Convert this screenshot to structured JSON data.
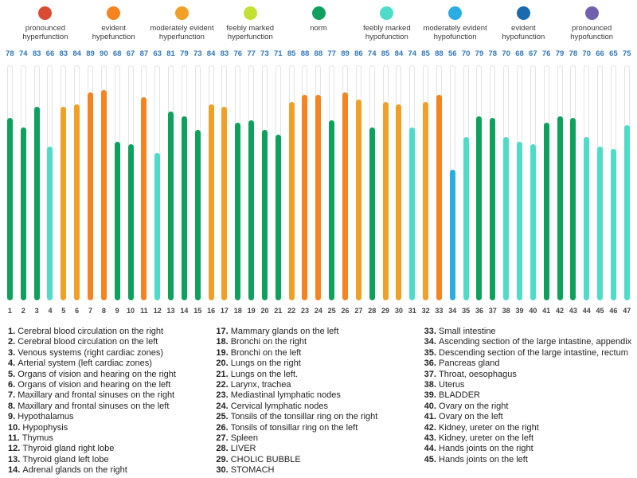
{
  "legend": {
    "items": [
      {
        "name": "pronounced-hyperfunction",
        "label": "pronounced hyperfunction",
        "color": "#d94c33"
      },
      {
        "name": "evident-hyperfunction",
        "label": "evident hypefunction",
        "color": "#f5831f"
      },
      {
        "name": "moderately-evident-hyperfunction",
        "label": "moderately evident hyperfunction",
        "color": "#f0a026"
      },
      {
        "name": "feebly-marked-hyperfunction",
        "label": "feebly marked hyperfunction",
        "color": "#c3e135"
      },
      {
        "name": "norm",
        "label": "norm",
        "color": "#0da15d"
      },
      {
        "name": "feebly-marked-hypofunction",
        "label": "feebly marked hypofunction",
        "color": "#4edcc8"
      },
      {
        "name": "moderately-evident-hypofunction",
        "label": "moderately evident hypofunction",
        "color": "#29ade3"
      },
      {
        "name": "evident-hypofunction",
        "label": "evident hypofunction",
        "color": "#1a6ab1"
      },
      {
        "name": "pronounced-hypofunction",
        "label": "pronounced hypofunction",
        "color": "#7061ae"
      }
    ]
  },
  "chart_data": {
    "type": "bar",
    "title": "",
    "xlabel": "",
    "ylabel": "",
    "ylim": [
      0,
      100
    ],
    "grid": false,
    "value_label_color": "#3277b8",
    "categories": [
      1,
      2,
      3,
      4,
      5,
      6,
      7,
      8,
      9,
      10,
      11,
      12,
      13,
      14,
      15,
      16,
      17,
      18,
      19,
      20,
      21,
      22,
      23,
      24,
      25,
      26,
      27,
      28,
      29,
      30,
      31,
      32,
      33,
      34,
      35,
      36,
      37,
      38,
      39,
      40,
      41,
      42,
      43,
      44,
      45,
      46,
      47
    ],
    "values": [
      78,
      74,
      83,
      66,
      83,
      84,
      89,
      90,
      68,
      67,
      87,
      63,
      81,
      79,
      73,
      84,
      83,
      76,
      77,
      73,
      71,
      85,
      88,
      88,
      77,
      89,
      86,
      74,
      85,
      84,
      74,
      85,
      88,
      56,
      70,
      79,
      78,
      70,
      68,
      67,
      76,
      79,
      78,
      70,
      66,
      65,
      75
    ],
    "statuses": [
      "norm",
      "norm",
      "norm",
      "feebly_hypo",
      "mod_hyper",
      "mod_hyper",
      "evident_hyper",
      "evident_hyper",
      "norm",
      "norm",
      "evident_hyper",
      "feebly_hypo",
      "norm",
      "norm",
      "norm",
      "mod_hyper",
      "mod_hyper",
      "norm",
      "norm",
      "norm",
      "norm",
      "mod_hyper",
      "evident_hyper",
      "evident_hyper",
      "norm",
      "evident_hyper",
      "mod_hyper",
      "norm",
      "mod_hyper",
      "mod_hyper",
      "feebly_hypo",
      "mod_hyper",
      "evident_hyper",
      "mod_hypo",
      "feebly_hypo",
      "norm",
      "norm",
      "feebly_hypo",
      "feebly_hypo",
      "feebly_hypo",
      "norm",
      "norm",
      "norm",
      "feebly_hypo",
      "feebly_hypo",
      "feebly_hypo",
      "feebly_hypo"
    ],
    "status_colors": {
      "norm": "#0da15d",
      "mod_hyper": "#f0a026",
      "evident_hyper": "#f5831f",
      "feebly_hypo": "#4edcc8",
      "mod_hypo": "#29ade3"
    }
  },
  "organ_list": {
    "columns": [
      {
        "items": [
          {
            "num": "1.",
            "name": "Cerebral blood circulation on the right"
          },
          {
            "num": "2.",
            "name": "Cerebral blood circulation on the left"
          },
          {
            "num": "3.",
            "name": "Venous systems (right cardiac zones)"
          },
          {
            "num": "4.",
            "name": "Arterial system (left cardiac zones)"
          },
          {
            "num": "5.",
            "name": "Organs of vision and hearing on the right"
          },
          {
            "num": "6.",
            "name": "Organs of vision and hearing on the left"
          },
          {
            "num": "7.",
            "name": "Maxillary and frontal sinuses on the right"
          },
          {
            "num": "8.",
            "name": "Maxillary and frontal sinuses on the left"
          },
          {
            "num": "9.",
            "name": "Hypothalamus"
          },
          {
            "num": "10.",
            "name": "Hypophysis"
          },
          {
            "num": "11.",
            "name": "Thymus"
          },
          {
            "num": "12.",
            "name": "Thyroid gland right lobe"
          },
          {
            "num": "13.",
            "name": "Thyroid gland left lobe"
          },
          {
            "num": "14.",
            "name": "Adrenal glands on the right"
          }
        ]
      },
      {
        "items": [
          {
            "num": "17.",
            "name": "Mammary glands on the left"
          },
          {
            "num": "18.",
            "name": "Bronchi on the right"
          },
          {
            "num": "19.",
            "name": "Bronchi on the left"
          },
          {
            "num": "20.",
            "name": "Lungs on the right"
          },
          {
            "num": "21.",
            "name": "Lungs on the left."
          },
          {
            "num": "22.",
            "name": "Larynx, trachea"
          },
          {
            "num": "23.",
            "name": "Mediastinal lymphatic nodes"
          },
          {
            "num": "24.",
            "name": "Cervical lymphatic nodes"
          },
          {
            "num": "25.",
            "name": "Tonsils of the tonsillar ring on the right"
          },
          {
            "num": "26.",
            "name": "Tonsils of tonsillar ring on the left"
          },
          {
            "num": "27.",
            "name": "Spleen"
          },
          {
            "num": "28.",
            "name": "LIVER"
          },
          {
            "num": "29.",
            "name": "CHOLIC BUBBLE"
          },
          {
            "num": "30.",
            "name": "STOMACH"
          }
        ]
      },
      {
        "items": [
          {
            "num": "33.",
            "name": "Small intestine"
          },
          {
            "num": "34.",
            "name": "Ascending section of the large intastine, appendix"
          },
          {
            "num": "35.",
            "name": "Descending section of the large intastine, rectum"
          },
          {
            "num": "36.",
            "name": "Pancreas gland"
          },
          {
            "num": "37.",
            "name": "Throat, oesophagus"
          },
          {
            "num": "38.",
            "name": "Uterus"
          },
          {
            "num": "39.",
            "name": "BLADDER"
          },
          {
            "num": "40.",
            "name": "Ovary on the right"
          },
          {
            "num": "41.",
            "name": "Ovary on the left"
          },
          {
            "num": "42.",
            "name": "Kidney, ureter on the right"
          },
          {
            "num": "43.",
            "name": "Kidney, ureter on the left"
          },
          {
            "num": "44.",
            "name": "Hands joints on the right"
          },
          {
            "num": "45.",
            "name": "Hands joints on the left"
          }
        ]
      }
    ]
  }
}
